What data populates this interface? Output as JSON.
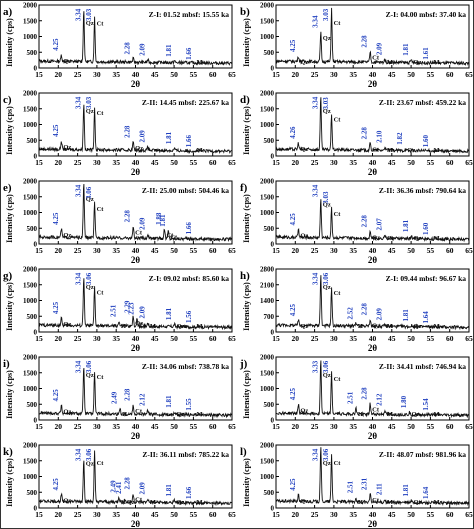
{
  "figure": {
    "axis_label_x": "2θ",
    "axis_label_y": "Intensity (cps)",
    "colors": {
      "trace": "#111111",
      "peak_label": "#1f3fbf",
      "annotation": "#111111"
    }
  },
  "chart_data": [
    {
      "type": "line",
      "panel": "a)",
      "title": "Z-I: 01.52 mbsf: 15.55 ka",
      "xlabel": "2θ",
      "ylabel": "Intensity (cps)",
      "xlim": [
        15,
        65
      ],
      "ylim": [
        0,
        2000
      ],
      "x_ticks": [
        "15",
        "20",
        "25",
        "30",
        "35",
        "40",
        "45",
        "50",
        "55",
        "60",
        "65"
      ],
      "y_ticks": [
        "0",
        "500",
        "1000",
        "1500",
        "2000"
      ],
      "peaks": [
        {
          "pos": 20.8,
          "val": 420,
          "d": "4.25",
          "min": "Qz"
        },
        {
          "pos": 26.6,
          "val": 1880,
          "d": "3.34",
          "min": "Qz"
        },
        {
          "pos": 29.4,
          "val": 1600,
          "d": "3.03",
          "min": "Ct"
        },
        {
          "pos": 39.4,
          "val": 300,
          "d": "2.28",
          "min": ""
        },
        {
          "pos": 43.2,
          "val": 260,
          "d": "2.09",
          "min": ""
        },
        {
          "pos": 50.1,
          "val": 230,
          "d": "1.81",
          "min": ""
        },
        {
          "pos": 55.3,
          "val": 130,
          "d": "1.66",
          "min": "M"
        }
      ]
    },
    {
      "type": "line",
      "panel": "b)",
      "title": "Z-I: 04.00 mbsf: 37.40 ka",
      "xlabel": "2θ",
      "ylabel": "Intensity (cps)",
      "xlim": [
        15,
        65
      ],
      "ylim": [
        0,
        2000
      ],
      "x_ticks": [
        "15",
        "20",
        "25",
        "30",
        "35",
        "40",
        "45",
        "50",
        "55",
        "60",
        "65"
      ],
      "y_ticks": [
        "0",
        "500",
        "1000",
        "1500",
        "2000"
      ],
      "peaks": [
        {
          "pos": 20.8,
          "val": 380,
          "d": "4.25",
          "min": "Qz"
        },
        {
          "pos": 26.6,
          "val": 1150,
          "d": "3.34",
          "min": "Qz"
        },
        {
          "pos": 29.4,
          "val": 1900,
          "d": "3.03",
          "min": "Ct"
        },
        {
          "pos": 39.4,
          "val": 520,
          "d": "2.28",
          "min": "Ct"
        },
        {
          "pos": 43.2,
          "val": 280,
          "d": "2.09",
          "min": "M"
        },
        {
          "pos": 50.1,
          "val": 260,
          "d": "1.81",
          "min": "Qz"
        },
        {
          "pos": 55.3,
          "val": 140,
          "d": "1.61",
          "min": "M"
        }
      ]
    },
    {
      "type": "line",
      "panel": "c)",
      "title": "Z-II: 14.45 mbsf: 225.67 ka",
      "xlabel": "2θ",
      "ylabel": "Intensity (cps)",
      "xlim": [
        15,
        65
      ],
      "ylim": [
        0,
        2000
      ],
      "x_ticks": [
        "15",
        "20",
        "25",
        "30",
        "35",
        "40",
        "45",
        "50",
        "55",
        "60",
        "65"
      ],
      "y_ticks": [
        "0",
        "500",
        "1000",
        "1500",
        "2000"
      ],
      "peaks": [
        {
          "pos": 20.8,
          "val": 480,
          "d": "4.25",
          "min": "Qz"
        },
        {
          "pos": 26.6,
          "val": 1700,
          "d": "3.34",
          "min": "Qz"
        },
        {
          "pos": 29.4,
          "val": 1550,
          "d": "3.03",
          "min": "Ct"
        },
        {
          "pos": 39.4,
          "val": 450,
          "d": "2.28",
          "min": "Qz"
        },
        {
          "pos": 43.2,
          "val": 300,
          "d": "2.09",
          "min": ""
        },
        {
          "pos": 50.1,
          "val": 250,
          "d": "1.81",
          "min": ""
        },
        {
          "pos": 55.3,
          "val": 150,
          "d": "1.66",
          "min": "M"
        }
      ]
    },
    {
      "type": "line",
      "panel": "d)",
      "title": "Z-II: 23.67 mbsf: 459.22 ka",
      "xlabel": "2θ",
      "ylabel": "Intensity (cps)",
      "xlim": [
        15,
        65
      ],
      "ylim": [
        0,
        2000
      ],
      "x_ticks": [
        "15",
        "20",
        "25",
        "30",
        "35",
        "40",
        "45",
        "50",
        "55",
        "60",
        "65"
      ],
      "y_ticks": [
        "0",
        "500",
        "1000",
        "1500",
        "2000"
      ],
      "peaks": [
        {
          "pos": 20.8,
          "val": 420,
          "d": "4.26",
          "min": "Qz"
        },
        {
          "pos": 26.6,
          "val": 1900,
          "d": "3.34",
          "min": "Qz"
        },
        {
          "pos": 29.4,
          "val": 1350,
          "d": "3.03",
          "min": "Ct"
        },
        {
          "pos": 39.4,
          "val": 400,
          "d": "2.28",
          "min": "Ct"
        },
        {
          "pos": 43.2,
          "val": 290,
          "d": "2.10",
          "min": "M"
        },
        {
          "pos": 48.5,
          "val": 230,
          "d": "1.82",
          "min": "Qz"
        },
        {
          "pos": 55.3,
          "val": 150,
          "d": "1.60",
          "min": "M"
        }
      ]
    },
    {
      "type": "line",
      "panel": "e)",
      "title": "Z-II: 25.00 mbsf: 504.46 ka",
      "xlabel": "2θ",
      "ylabel": "Intensity (cps)",
      "xlim": [
        15,
        65
      ],
      "ylim": [
        0,
        2000
      ],
      "x_ticks": [
        "15",
        "20",
        "25",
        "30",
        "35",
        "40",
        "45",
        "50",
        "55",
        "60",
        "65"
      ],
      "y_ticks": [
        "0",
        "500",
        "1000",
        "1500",
        "2000"
      ],
      "peaks": [
        {
          "pos": 20.8,
          "val": 480,
          "d": "4.25",
          "min": "Qz"
        },
        {
          "pos": 26.6,
          "val": 2000,
          "d": "3.34",
          "min": "Qz"
        },
        {
          "pos": 29.4,
          "val": 1300,
          "d": "3.06",
          "min": "Ct"
        },
        {
          "pos": 39.4,
          "val": 560,
          "d": "2.28",
          "min": "Ct"
        },
        {
          "pos": 43.2,
          "val": 320,
          "d": "2.09",
          "min": ""
        },
        {
          "pos": 47.5,
          "val": 480,
          "d": "1.88",
          "min": "Ct"
        },
        {
          "pos": 48.5,
          "val": 420,
          "d": "1.81",
          "min": "Ct"
        },
        {
          "pos": 55.3,
          "val": 180,
          "d": "1.66",
          "min": ""
        }
      ]
    },
    {
      "type": "line",
      "panel": "f)",
      "title": "Z-II: 36.36 mbsf: 790.64 ka",
      "xlabel": "2θ",
      "ylabel": "Intensity (cps)",
      "xlim": [
        15,
        65
      ],
      "ylim": [
        0,
        2000
      ],
      "x_ticks": [
        "15",
        "20",
        "25",
        "30",
        "35",
        "40",
        "45",
        "50",
        "55",
        "60",
        "65"
      ],
      "y_ticks": [
        "0",
        "500",
        "1000",
        "1500",
        "2000"
      ],
      "peaks": [
        {
          "pos": 20.8,
          "val": 460,
          "d": "4.25",
          "min": "Qz"
        },
        {
          "pos": 26.6,
          "val": 1450,
          "d": "3.34",
          "min": "Qz"
        },
        {
          "pos": 29.4,
          "val": 1150,
          "d": "3.03",
          "min": "Ct"
        },
        {
          "pos": 39.4,
          "val": 400,
          "d": "2.28",
          "min": "Qz"
        },
        {
          "pos": 43.2,
          "val": 300,
          "d": "2.07",
          "min": "Ct"
        },
        {
          "pos": 50.1,
          "val": 250,
          "d": "1.81",
          "min": "Qz"
        },
        {
          "pos": 55.3,
          "val": 160,
          "d": "1.60",
          "min": "M"
        }
      ]
    },
    {
      "type": "line",
      "panel": "g)",
      "title": "Z-I: 09.02 mbsf: 85.60 ka",
      "xlabel": "2θ",
      "ylabel": "Intensity (cps)",
      "xlim": [
        15,
        65
      ],
      "ylim": [
        0,
        2000
      ],
      "x_ticks": [
        "15",
        "20",
        "25",
        "30",
        "35",
        "40",
        "45",
        "50",
        "55",
        "60",
        "65"
      ],
      "y_ticks": [
        "0",
        "500",
        "1000",
        "1500",
        "2000"
      ],
      "peaks": [
        {
          "pos": 20.8,
          "val": 440,
          "d": "4.25",
          "min": "Qz"
        },
        {
          "pos": 26.6,
          "val": 1800,
          "d": "3.34",
          "min": "Qz"
        },
        {
          "pos": 29.4,
          "val": 1450,
          "d": "3.06",
          "min": "Ct"
        },
        {
          "pos": 35.7,
          "val": 350,
          "d": "2.51",
          "min": "H"
        },
        {
          "pos": 39.4,
          "val": 480,
          "d": "2.29",
          "min": "Qz"
        },
        {
          "pos": 40.4,
          "val": 420,
          "d": "2.23",
          "min": "Ct"
        },
        {
          "pos": 43.2,
          "val": 300,
          "d": "2.09",
          "min": "M"
        },
        {
          "pos": 50.1,
          "val": 250,
          "d": "1.81",
          "min": "Qz"
        },
        {
          "pos": 55.3,
          "val": 160,
          "d": "1.56",
          "min": "M"
        }
      ]
    },
    {
      "type": "line",
      "panel": "h)",
      "title": "Z-I: 09.44 mbsf: 96.67 ka",
      "xlabel": "2θ",
      "ylabel": "Intensity (cps)",
      "xlim": [
        15,
        65
      ],
      "ylim": [
        0,
        2800
      ],
      "x_ticks": [
        "15",
        "20",
        "25",
        "30",
        "35",
        "40",
        "45",
        "50",
        "55",
        "60",
        "65"
      ],
      "y_ticks": [
        "0",
        "700",
        "1400",
        "2100",
        "2800"
      ],
      "peaks": [
        {
          "pos": 20.8,
          "val": 520,
          "d": "4.25",
          "min": "Qz"
        },
        {
          "pos": 26.6,
          "val": 2600,
          "d": "3.34",
          "min": "Qz"
        },
        {
          "pos": 29.4,
          "val": 2000,
          "d": "3.06",
          "min": "Ct"
        },
        {
          "pos": 35.7,
          "val": 380,
          "d": "2.52",
          "min": "H"
        },
        {
          "pos": 39.4,
          "val": 560,
          "d": "2.28",
          "min": "Qz"
        },
        {
          "pos": 43.2,
          "val": 340,
          "d": "2.09",
          "min": "M"
        },
        {
          "pos": 50.1,
          "val": 290,
          "d": "1.81",
          "min": "Qz"
        },
        {
          "pos": 55.3,
          "val": 200,
          "d": "1.64",
          "min": "M"
        }
      ]
    },
    {
      "type": "line",
      "panel": "i)",
      "title": "Z-II: 34.06 mbsf: 738.78 ka",
      "xlabel": "2θ",
      "ylabel": "Intensity (cps)",
      "xlim": [
        15,
        65
      ],
      "ylim": [
        0,
        2000
      ],
      "x_ticks": [
        "15",
        "20",
        "25",
        "30",
        "35",
        "40",
        "45",
        "50",
        "55",
        "60",
        "65"
      ],
      "y_ticks": [
        "0",
        "500",
        "1000",
        "1500",
        "2000"
      ],
      "peaks": [
        {
          "pos": 20.8,
          "val": 460,
          "d": "4.25",
          "min": "Qz"
        },
        {
          "pos": 26.6,
          "val": 1750,
          "d": "3.34",
          "min": "Qz"
        },
        {
          "pos": 29.4,
          "val": 1550,
          "d": "3.06",
          "min": "Ct"
        },
        {
          "pos": 36.0,
          "val": 380,
          "d": "2.49",
          "min": "H"
        },
        {
          "pos": 39.4,
          "val": 480,
          "d": "2.28",
          "min": "Ct"
        },
        {
          "pos": 43.2,
          "val": 320,
          "d": "2.12",
          "min": ""
        },
        {
          "pos": 50.1,
          "val": 260,
          "d": "1.81",
          "min": "Qz"
        },
        {
          "pos": 55.3,
          "val": 170,
          "d": "1.55",
          "min": "M"
        }
      ]
    },
    {
      "type": "line",
      "panel": "j)",
      "title": "Z-II: 34.41 mbsf: 746.94 ka",
      "xlabel": "2θ",
      "ylabel": "Intensity (cps)",
      "xlim": [
        15,
        65
      ],
      "ylim": [
        0,
        2000
      ],
      "x_ticks": [
        "15",
        "20",
        "25",
        "30",
        "35",
        "40",
        "45",
        "50",
        "55",
        "60",
        "65"
      ],
      "y_ticks": [
        "0",
        "500",
        "1000",
        "1500",
        "2000"
      ],
      "peaks": [
        {
          "pos": 20.8,
          "val": 500,
          "d": "4.25",
          "min": "Qz"
        },
        {
          "pos": 26.6,
          "val": 1950,
          "d": "3.33",
          "min": "Qz"
        },
        {
          "pos": 29.4,
          "val": 1500,
          "d": "3.06",
          "min": "Ct"
        },
        {
          "pos": 35.7,
          "val": 380,
          "d": "2.51",
          "min": "H"
        },
        {
          "pos": 39.4,
          "val": 520,
          "d": "2.28",
          "min": "Ct"
        },
        {
          "pos": 43.2,
          "val": 320,
          "d": "2.12",
          "min": "M"
        },
        {
          "pos": 49.6,
          "val": 250,
          "d": "1.80",
          "min": "Qz"
        },
        {
          "pos": 55.3,
          "val": 170,
          "d": "1.54",
          "min": "M"
        }
      ]
    },
    {
      "type": "line",
      "panel": "k)",
      "title": "Z-II: 36.11 mbsf: 785.22 ka",
      "xlabel": "2θ",
      "ylabel": "Intensity (cps)",
      "xlim": [
        15,
        65
      ],
      "ylim": [
        0,
        2000
      ],
      "x_ticks": [
        "15",
        "20",
        "25",
        "30",
        "35",
        "40",
        "45",
        "50",
        "55",
        "60",
        "65"
      ],
      "y_ticks": [
        "0",
        "500",
        "1000",
        "1500",
        "2000"
      ],
      "peaks": [
        {
          "pos": 20.8,
          "val": 430,
          "d": "4.25",
          "min": "Qz"
        },
        {
          "pos": 26.6,
          "val": 1600,
          "d": "3.34",
          "min": "Qz"
        },
        {
          "pos": 29.4,
          "val": 1800,
          "d": "3.06",
          "min": "Ct"
        },
        {
          "pos": 35.7,
          "val": 360,
          "d": "2.49",
          "min": "H"
        },
        {
          "pos": 37.2,
          "val": 320,
          "d": "2.41",
          "min": "Qz"
        },
        {
          "pos": 39.4,
          "val": 460,
          "d": "2.28",
          "min": "Ct"
        },
        {
          "pos": 43.2,
          "val": 300,
          "d": "2.09",
          "min": "M"
        },
        {
          "pos": 50.1,
          "val": 240,
          "d": "1.81",
          "min": "Qz"
        },
        {
          "pos": 55.3,
          "val": 160,
          "d": "1.66",
          "min": "M"
        }
      ]
    },
    {
      "type": "line",
      "panel": "l)",
      "title": "Z-II: 48.07 mbsf: 981.96 ka",
      "xlabel": "2θ",
      "ylabel": "Intensity (cps)",
      "xlim": [
        15,
        65
      ],
      "ylim": [
        0,
        2000
      ],
      "x_ticks": [
        "15",
        "20",
        "25",
        "30",
        "35",
        "40",
        "45",
        "50",
        "55",
        "60",
        "65"
      ],
      "y_ticks": [
        "0",
        "500",
        "1000",
        "1500",
        "2000"
      ],
      "peaks": [
        {
          "pos": 20.8,
          "val": 420,
          "d": "4.25",
          "min": "Qz"
        },
        {
          "pos": 26.6,
          "val": 2000,
          "d": "3.34",
          "min": "Qz"
        },
        {
          "pos": 29.4,
          "val": 1700,
          "d": "3.06",
          "min": "Ct"
        },
        {
          "pos": 35.7,
          "val": 340,
          "d": "2.51",
          "min": "H"
        },
        {
          "pos": 39.4,
          "val": 440,
          "d": "2.31",
          "min": "Ct"
        },
        {
          "pos": 43.2,
          "val": 280,
          "d": "2.11",
          "min": "M"
        },
        {
          "pos": 50.1,
          "val": 240,
          "d": "1.81",
          "min": "Qz"
        },
        {
          "pos": 55.3,
          "val": 160,
          "d": "1.64",
          "min": "M"
        }
      ]
    }
  ]
}
